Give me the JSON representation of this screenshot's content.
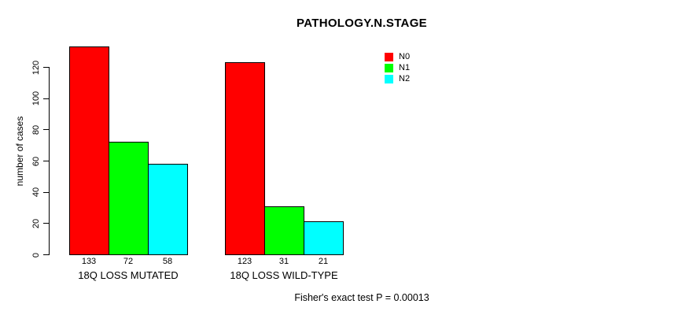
{
  "chart_data": {
    "type": "bar",
    "title": "PATHOLOGY.N.STAGE",
    "ylabel": "number of cases",
    "xlabel": "",
    "ylim": [
      0,
      120
    ],
    "yticks": [
      0,
      20,
      40,
      60,
      80,
      100,
      120
    ],
    "grid": false,
    "legend_position": "top-right-inside",
    "categories": [
      "18Q LOSS MUTATED",
      "18Q LOSS WILD-TYPE"
    ],
    "series": [
      {
        "name": "N0",
        "color": "#ff0000",
        "values": [
          133,
          123
        ]
      },
      {
        "name": "N1",
        "color": "#00ff00",
        "values": [
          72,
          31
        ]
      },
      {
        "name": "N2",
        "color": "#00ffff",
        "values": [
          58,
          21
        ]
      }
    ],
    "bar_value_labels": [
      [
        "133",
        "72",
        "58"
      ],
      [
        "123",
        "31",
        "21"
      ]
    ]
  },
  "footer": {
    "text": "Fisher's exact test P = 0.00013"
  }
}
